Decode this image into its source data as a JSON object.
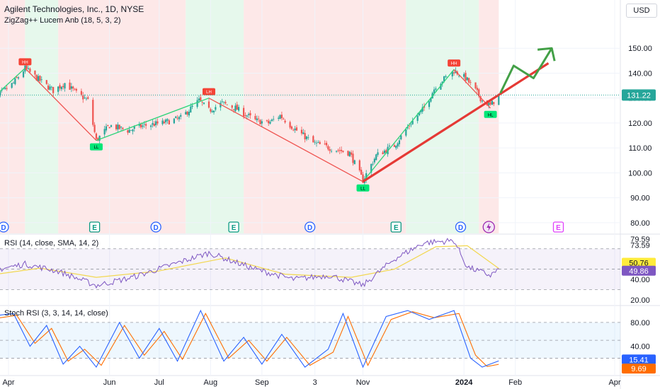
{
  "header": {
    "title": "Agilent Technologies, Inc., 1D, NYSE",
    "indicator": "ZigZag++ Lucem Anb (18, 5, 3, 2)",
    "currency": "USD"
  },
  "colors": {
    "up_candle": "#26a69a",
    "down_candle": "#ef5350",
    "bull_zone": "#e6f8ec",
    "bear_zone": "#fde8e8",
    "zigzag_up": "#2ed47a",
    "zigzag_down": "#ef5350",
    "trend_line": "#e53935",
    "projection": "#43a047",
    "rsi_line": "#7e57c2",
    "rsi_ma": "#f2d74e",
    "stoch_k": "#2962ff",
    "stoch_d": "#ff6d00"
  },
  "chart_data": [
    {
      "type": "candlestick",
      "name": "price",
      "ylim": [
        76,
        158
      ],
      "yticks": [
        80,
        90,
        100,
        110,
        120,
        130,
        140,
        150
      ],
      "ytick_labels": [
        "80.00",
        "90.00",
        "100.00",
        "110.00",
        "120.00",
        "130.00",
        "140.00",
        "150.00"
      ],
      "last_price": 131.22,
      "last_price_label": "131.22",
      "x_labels": [
        {
          "label": "Apr",
          "date": "2023-04-01"
        },
        {
          "label": "Jun",
          "date": "2023-06-01"
        },
        {
          "label": "Jul",
          "date": "2023-07-01"
        },
        {
          "label": "Aug",
          "date": "2023-08-01"
        },
        {
          "label": "Sep",
          "date": "2023-09-01"
        },
        {
          "label": "3",
          "date": "2023-10-03"
        },
        {
          "label": "Nov",
          "date": "2023-11-01"
        },
        {
          "label": "2024",
          "date": "2024-01-01"
        },
        {
          "label": "Feb",
          "date": "2024-02-01"
        },
        {
          "label": "Apr",
          "date": "2024-04-01"
        }
      ],
      "close_path": [
        {
          "date": "2023-03-20",
          "close": 128
        },
        {
          "date": "2023-04-04",
          "close": 136
        },
        {
          "date": "2023-04-11",
          "close": 142
        },
        {
          "date": "2023-04-20",
          "close": 137
        },
        {
          "date": "2023-04-28",
          "close": 133
        },
        {
          "date": "2023-05-05",
          "close": 136
        },
        {
          "date": "2023-05-12",
          "close": 132
        },
        {
          "date": "2023-05-19",
          "close": 129
        },
        {
          "date": "2023-05-24",
          "close": 113
        },
        {
          "date": "2023-06-01",
          "close": 119
        },
        {
          "date": "2023-06-12",
          "close": 117
        },
        {
          "date": "2023-06-22",
          "close": 119
        },
        {
          "date": "2023-07-03",
          "close": 120
        },
        {
          "date": "2023-07-14",
          "close": 122
        },
        {
          "date": "2023-07-25",
          "close": 129
        },
        {
          "date": "2023-07-31",
          "close": 125
        },
        {
          "date": "2023-08-08",
          "close": 128
        },
        {
          "date": "2023-08-16",
          "close": 126
        },
        {
          "date": "2023-08-28",
          "close": 121
        },
        {
          "date": "2023-09-05",
          "close": 120
        },
        {
          "date": "2023-09-12",
          "close": 123
        },
        {
          "date": "2023-09-20",
          "close": 118
        },
        {
          "date": "2023-10-02",
          "close": 112
        },
        {
          "date": "2023-10-12",
          "close": 110
        },
        {
          "date": "2023-10-24",
          "close": 108
        },
        {
          "date": "2023-11-01",
          "close": 97
        },
        {
          "date": "2023-11-09",
          "close": 107
        },
        {
          "date": "2023-11-20",
          "close": 111
        },
        {
          "date": "2023-11-30",
          "close": 120
        },
        {
          "date": "2023-12-08",
          "close": 126
        },
        {
          "date": "2023-12-15",
          "close": 135
        },
        {
          "date": "2023-12-26",
          "close": 141
        },
        {
          "date": "2024-01-02",
          "close": 138
        },
        {
          "date": "2024-01-08",
          "close": 133
        },
        {
          "date": "2024-01-12",
          "close": 129
        },
        {
          "date": "2024-01-17",
          "close": 127
        },
        {
          "date": "2024-01-22",
          "close": 131.22
        }
      ],
      "zigzag_pivots": [
        {
          "date": "2023-03-20",
          "price": 128.5,
          "label": "HL",
          "kind": "low"
        },
        {
          "date": "2023-04-11",
          "price": 142,
          "label": "HH",
          "kind": "high"
        },
        {
          "date": "2023-05-24",
          "price": 113,
          "label": "LL",
          "kind": "low"
        },
        {
          "date": "2023-07-31",
          "price": 130,
          "label": "LH",
          "kind": "high"
        },
        {
          "date": "2023-11-01",
          "price": 96.5,
          "label": "LL",
          "kind": "low"
        },
        {
          "date": "2023-12-26",
          "price": 141.5,
          "label": "HH",
          "kind": "high"
        },
        {
          "date": "2024-01-17",
          "price": 126,
          "label": "HL",
          "kind": "low"
        }
      ],
      "zones": [
        {
          "start": "2023-03-14",
          "end": "2023-04-11",
          "kind": "bear"
        },
        {
          "start": "2023-04-11",
          "end": "2023-05-01",
          "kind": "bull"
        },
        {
          "start": "2023-05-01",
          "end": "2023-07-17",
          "kind": "bear"
        },
        {
          "start": "2023-07-17",
          "end": "2023-08-21",
          "kind": "bull"
        },
        {
          "start": "2023-08-21",
          "end": "2023-11-27",
          "kind": "bear"
        },
        {
          "start": "2023-11-27",
          "end": "2024-01-10",
          "kind": "bull"
        },
        {
          "start": "2024-01-10",
          "end": "2024-01-22",
          "kind": "bear"
        }
      ],
      "trend_line": [
        {
          "date": "2023-11-01",
          "price": 96.5
        },
        {
          "date": "2024-02-21",
          "price": 144
        }
      ],
      "projection": [
        {
          "date": "2024-01-23",
          "price": 132
        },
        {
          "date": "2024-01-31",
          "price": 143
        },
        {
          "date": "2024-02-12",
          "price": 138
        },
        {
          "date": "2024-02-23",
          "price": 150
        }
      ],
      "events": [
        {
          "date": "2023-03-29",
          "label": "D",
          "kind": "dividend"
        },
        {
          "date": "2023-05-23",
          "label": "E",
          "kind": "earnings"
        },
        {
          "date": "2023-06-29",
          "label": "D",
          "kind": "dividend"
        },
        {
          "date": "2023-08-15",
          "label": "E",
          "kind": "earnings"
        },
        {
          "date": "2023-09-30",
          "label": "D",
          "kind": "dividend"
        },
        {
          "date": "2023-11-21",
          "label": "E",
          "kind": "earnings"
        },
        {
          "date": "2023-12-30",
          "label": "D",
          "kind": "dividend"
        },
        {
          "date": "2024-01-16",
          "label": "",
          "kind": "split"
        },
        {
          "date": "2024-02-27",
          "label": "E",
          "kind": "earnings-upcoming"
        }
      ]
    },
    {
      "type": "line",
      "name": "rsi",
      "label": "RSI (14, close, SMA, 14, 2)",
      "ylim": [
        15,
        83
      ],
      "band": [
        30,
        70
      ],
      "yticks": [
        20,
        40,
        73.59,
        79.59
      ],
      "ytick_labels": [
        "20.00",
        "40.00",
        "73.59",
        "79.59"
      ],
      "rsi_value": 49.86,
      "rsi_value_label": "49.86",
      "ma_value": 50.76,
      "ma_value_label": "50.76",
      "rsi_path": [
        {
          "date": "2023-03-20",
          "value": 48
        },
        {
          "date": "2023-04-11",
          "value": 55
        },
        {
          "date": "2023-05-01",
          "value": 48
        },
        {
          "date": "2023-05-24",
          "value": 34
        },
        {
          "date": "2023-06-15",
          "value": 42
        },
        {
          "date": "2023-07-31",
          "value": 66
        },
        {
          "date": "2023-08-28",
          "value": 50
        },
        {
          "date": "2023-09-20",
          "value": 40
        },
        {
          "date": "2023-10-12",
          "value": 44
        },
        {
          "date": "2023-11-01",
          "value": 34
        },
        {
          "date": "2023-11-20",
          "value": 60
        },
        {
          "date": "2023-12-08",
          "value": 76
        },
        {
          "date": "2023-12-26",
          "value": 78
        },
        {
          "date": "2024-01-03",
          "value": 52
        },
        {
          "date": "2024-01-17",
          "value": 44
        },
        {
          "date": "2024-01-22",
          "value": 49.86
        }
      ],
      "ma_path": [
        {
          "date": "2023-03-20",
          "value": 44
        },
        {
          "date": "2023-04-20",
          "value": 51
        },
        {
          "date": "2023-05-24",
          "value": 42
        },
        {
          "date": "2023-06-30",
          "value": 48
        },
        {
          "date": "2023-08-10",
          "value": 61
        },
        {
          "date": "2023-09-15",
          "value": 45
        },
        {
          "date": "2023-10-25",
          "value": 42
        },
        {
          "date": "2023-11-20",
          "value": 50
        },
        {
          "date": "2023-12-15",
          "value": 72
        },
        {
          "date": "2024-01-03",
          "value": 73
        },
        {
          "date": "2024-01-22",
          "value": 50.76
        }
      ]
    },
    {
      "type": "line",
      "name": "stoch_rsi",
      "label": "Stoch RSI (3, 3, 14, 14, close)",
      "ylim": [
        -8,
        106
      ],
      "band": [
        20,
        80
      ],
      "yticks": [
        40,
        80
      ],
      "ytick_labels": [
        "40.00",
        "80.00"
      ],
      "k_value": 15.41,
      "k_value_label": "15.41",
      "d_value": 9.69,
      "d_value_label": "9.69",
      "k_path": [
        {
          "date": "2023-03-20",
          "value": 90
        },
        {
          "date": "2023-04-04",
          "value": 95
        },
        {
          "date": "2023-04-14",
          "value": 40
        },
        {
          "date": "2023-04-24",
          "value": 75
        },
        {
          "date": "2023-05-04",
          "value": 10
        },
        {
          "date": "2023-05-14",
          "value": 40
        },
        {
          "date": "2023-05-24",
          "value": 5
        },
        {
          "date": "2023-06-07",
          "value": 80
        },
        {
          "date": "2023-06-19",
          "value": 20
        },
        {
          "date": "2023-07-01",
          "value": 70
        },
        {
          "date": "2023-07-12",
          "value": 15
        },
        {
          "date": "2023-07-26",
          "value": 100
        },
        {
          "date": "2023-08-09",
          "value": 15
        },
        {
          "date": "2023-08-21",
          "value": 55
        },
        {
          "date": "2023-09-01",
          "value": 10
        },
        {
          "date": "2023-09-13",
          "value": 60
        },
        {
          "date": "2023-09-27",
          "value": 5
        },
        {
          "date": "2023-10-11",
          "value": 35
        },
        {
          "date": "2023-10-20",
          "value": 95
        },
        {
          "date": "2023-11-01",
          "value": 5
        },
        {
          "date": "2023-11-15",
          "value": 90
        },
        {
          "date": "2023-11-28",
          "value": 100
        },
        {
          "date": "2023-12-11",
          "value": 85
        },
        {
          "date": "2023-12-26",
          "value": 100
        },
        {
          "date": "2024-01-05",
          "value": 20
        },
        {
          "date": "2024-01-12",
          "value": 5
        },
        {
          "date": "2024-01-22",
          "value": 15.41
        }
      ],
      "d_path": [
        {
          "date": "2023-03-20",
          "value": 85
        },
        {
          "date": "2023-04-06",
          "value": 92
        },
        {
          "date": "2023-04-17",
          "value": 45
        },
        {
          "date": "2023-04-27",
          "value": 70
        },
        {
          "date": "2023-05-07",
          "value": 15
        },
        {
          "date": "2023-05-17",
          "value": 35
        },
        {
          "date": "2023-05-27",
          "value": 8
        },
        {
          "date": "2023-06-10",
          "value": 75
        },
        {
          "date": "2023-06-22",
          "value": 25
        },
        {
          "date": "2023-07-04",
          "value": 65
        },
        {
          "date": "2023-07-15",
          "value": 18
        },
        {
          "date": "2023-07-29",
          "value": 95
        },
        {
          "date": "2023-08-12",
          "value": 20
        },
        {
          "date": "2023-08-24",
          "value": 50
        },
        {
          "date": "2023-09-04",
          "value": 15
        },
        {
          "date": "2023-09-16",
          "value": 55
        },
        {
          "date": "2023-09-30",
          "value": 8
        },
        {
          "date": "2023-10-14",
          "value": 30
        },
        {
          "date": "2023-10-23",
          "value": 90
        },
        {
          "date": "2023-11-04",
          "value": 8
        },
        {
          "date": "2023-11-18",
          "value": 85
        },
        {
          "date": "2023-12-01",
          "value": 98
        },
        {
          "date": "2023-12-14",
          "value": 88
        },
        {
          "date": "2023-12-29",
          "value": 95
        },
        {
          "date": "2024-01-08",
          "value": 25
        },
        {
          "date": "2024-01-15",
          "value": 6
        },
        {
          "date": "2024-01-22",
          "value": 9.69
        }
      ]
    }
  ]
}
